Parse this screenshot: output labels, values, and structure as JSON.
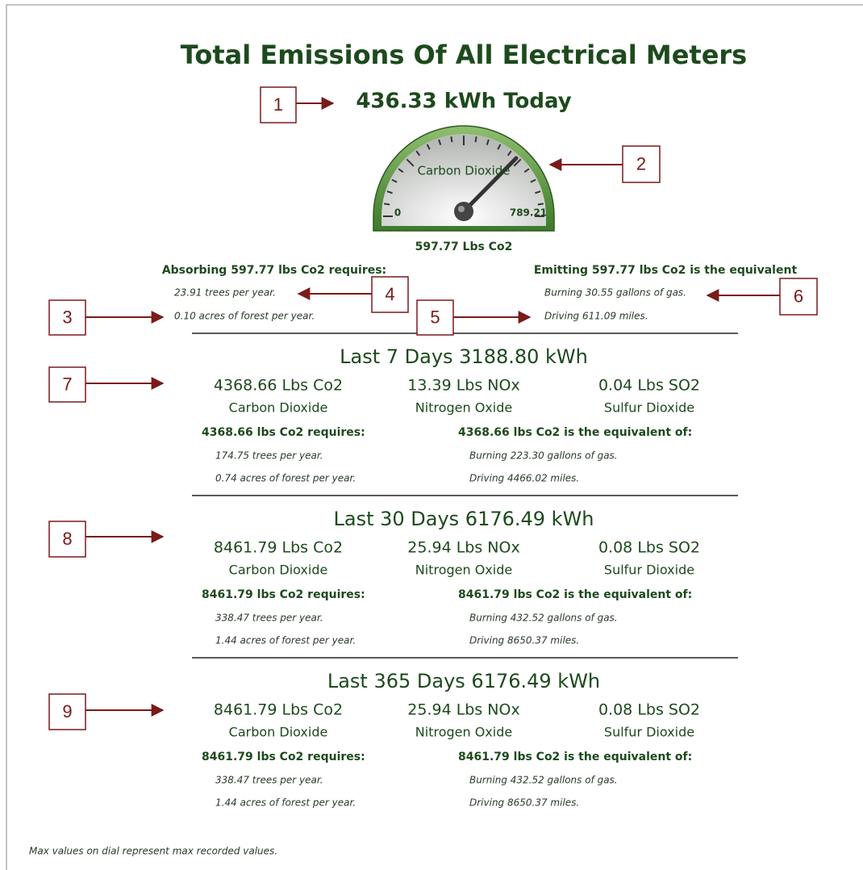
{
  "title": "Total Emissions Of All Electrical Meters",
  "today": "436.33 kWh Today",
  "gauge": {
    "label": "Carbon Dioxide",
    "min": "0",
    "max": "789.21",
    "reading": "597.77 Lbs Co2"
  },
  "absorb": {
    "heading": "Absorbing 597.77 lbs Co2 requires:",
    "lines": [
      "23.91 trees per year.",
      "0.10 acres of forest per year."
    ]
  },
  "emit": {
    "heading": "Emitting 597.77 lbs Co2 is the equivalent",
    "lines": [
      "Burning 30.55 gallons of gas.",
      "Driving 611.09 miles."
    ]
  },
  "periods": [
    {
      "heading": "Last 7 Days 3188.80 kWh",
      "stats": [
        {
          "value": "4368.66 Lbs Co2",
          "name": "Carbon Dioxide"
        },
        {
          "value": "13.39 Lbs NOx",
          "name": "Nitrogen Oxide"
        },
        {
          "value": "0.04 Lbs SO2",
          "name": "Sulfur Dioxide"
        }
      ],
      "requires": "4368.66 lbs Co2 requires:",
      "requires_lines": [
        "174.75 trees per year.",
        "0.74 acres of forest per year."
      ],
      "equivalent": "4368.66 lbs Co2 is the equivalent of:",
      "equivalent_lines": [
        "Burning 223.30 gallons of gas.",
        "Driving 4466.02 miles."
      ]
    },
    {
      "heading": "Last 30 Days 6176.49 kWh",
      "stats": [
        {
          "value": "8461.79 Lbs Co2",
          "name": "Carbon Dioxide"
        },
        {
          "value": "25.94 Lbs NOx",
          "name": "Nitrogen Oxide"
        },
        {
          "value": "0.08 Lbs SO2",
          "name": "Sulfur Dioxide"
        }
      ],
      "requires": "8461.79 lbs Co2 requires:",
      "requires_lines": [
        "338.47 trees per year.",
        "1.44 acres of forest per year."
      ],
      "equivalent": "8461.79 lbs Co2 is the equivalent of:",
      "equivalent_lines": [
        "Burning 432.52 gallons of gas.",
        "Driving 8650.37 miles."
      ]
    },
    {
      "heading": "Last 365 Days 6176.49 kWh",
      "stats": [
        {
          "value": "8461.79 Lbs Co2",
          "name": "Carbon Dioxide"
        },
        {
          "value": "25.94 Lbs NOx",
          "name": "Nitrogen Oxide"
        },
        {
          "value": "0.08 Lbs SO2",
          "name": "Sulfur Dioxide"
        }
      ],
      "requires": "8461.79 lbs Co2 requires:",
      "requires_lines": [
        "338.47 trees per year.",
        "1.44 acres of forest per year."
      ],
      "equivalent": "8461.79 lbs Co2 is the equivalent of:",
      "equivalent_lines": [
        "Burning 432.52 gallons of gas.",
        "Driving 8650.37 miles."
      ]
    }
  ],
  "callouts": [
    "1",
    "2",
    "3",
    "4",
    "5",
    "6",
    "7",
    "8",
    "9"
  ],
  "footer": "Max values on dial represent max recorded values."
}
